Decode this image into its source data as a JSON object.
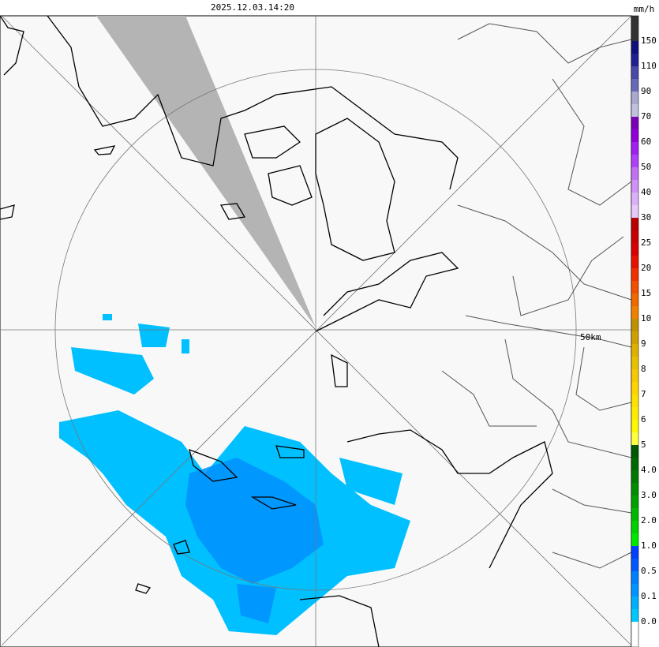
{
  "header": {
    "timestamp": "2025.12.03.14:20",
    "unit": "mm/h"
  },
  "map": {
    "range_label": "50km"
  },
  "legend": {
    "labels": [
      "150",
      "110",
      "90",
      "70",
      "60",
      "50",
      "40",
      "30",
      "25",
      "20",
      "15",
      "10",
      "9",
      "8",
      "7",
      "6",
      "5",
      "4.0",
      "3.0",
      "2.0",
      "1.0",
      "0.5",
      "0.1",
      "0.0"
    ],
    "colors": [
      "#333333",
      "#333333",
      "#10107a",
      "#202090",
      "#4848a8",
      "#6868b8",
      "#a8a8d0",
      "#c0c0e0",
      "#7a00b8",
      "#9000d8",
      "#a020f0",
      "#b040f8",
      "#c070f0",
      "#d090f8",
      "#dcb0f8",
      "#e8c8f8",
      "#b80000",
      "#c80000",
      "#d80000",
      "#e81000",
      "#f03000",
      "#f05000",
      "#f06800",
      "#f08000",
      "#c09000",
      "#d0a000",
      "#e0b000",
      "#e8c000",
      "#f8c800",
      "#ffd400",
      "#ffe000",
      "#ffec00",
      "#fff800",
      "#ffff40",
      "#005800",
      "#006800",
      "#007800",
      "#008c00",
      "#00a000",
      "#00b800",
      "#00d000",
      "#00e800",
      "#0040ff",
      "#0058ff",
      "#0080ff",
      "#0094ff",
      "#00b0ff",
      "#00c8ff",
      "#ffffff",
      "#ffffff"
    ]
  }
}
